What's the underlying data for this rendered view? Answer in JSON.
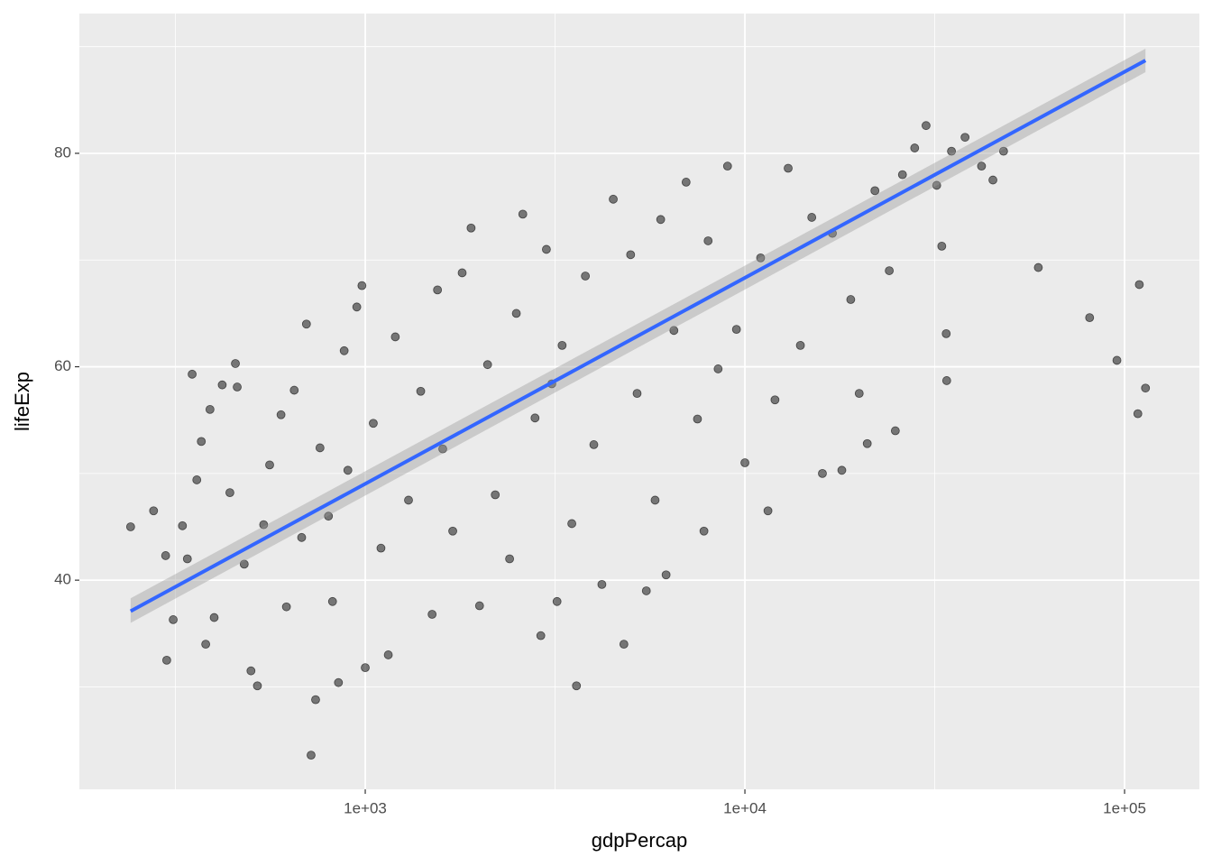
{
  "chart_data": {
    "type": "scatter",
    "x_label": "gdpPercap",
    "y_label": "lifeExp",
    "xscale": "log",
    "grid": true,
    "color": "#000000",
    "xlim": [
      176.6,
      157400
    ],
    "ylim": [
      20.4,
      93.1
    ],
    "xticks": [
      {
        "value": 1000,
        "label": "1e+03"
      },
      {
        "value": 10000,
        "label": "1e+04"
      },
      {
        "value": 100000,
        "label": "1e+05"
      }
    ],
    "minor_xticks": [
      316.2,
      3162,
      31623
    ],
    "yticks": [
      40,
      60,
      80
    ],
    "minor_yticks": [
      30,
      50,
      70,
      90
    ],
    "x": [
      241,
      277,
      298,
      300,
      312,
      330,
      340,
      350,
      360,
      370,
      380,
      390,
      400,
      420,
      440,
      455,
      460,
      480,
      500,
      520,
      540,
      560,
      600,
      620,
      650,
      680,
      700,
      720,
      740,
      760,
      800,
      820,
      850,
      880,
      900,
      950,
      980,
      1000,
      1050,
      1100,
      1150,
      1200,
      1300,
      1400,
      1500,
      1550,
      1600,
      1700,
      1800,
      1900,
      2000,
      2100,
      2200,
      2400,
      2500,
      2600,
      2800,
      2900,
      3000,
      3100,
      3200,
      3300,
      3500,
      3600,
      3800,
      4000,
      4200,
      4500,
      4800,
      5000,
      5200,
      5500,
      5800,
      6000,
      6200,
      6500,
      7000,
      7500,
      7800,
      8000,
      8500,
      9000,
      9500,
      10000,
      11000,
      11500,
      12000,
      13000,
      14000,
      15000,
      16000,
      17000,
      18000,
      19000,
      20000,
      21000,
      22000,
      24000,
      24900,
      26000,
      28000,
      30000,
      32000,
      33000,
      33900,
      34000,
      35000,
      38000,
      42000,
      45000,
      48000,
      59265,
      80895,
      95458,
      108382,
      109348,
      113523
    ],
    "values": [
      45,
      46.5,
      42.3,
      32.5,
      36.3,
      45.1,
      42,
      59.3,
      49.4,
      53,
      34,
      56,
      36.5,
      58.3,
      48.2,
      60.3,
      58.1,
      41.5,
      31.5,
      30.1,
      45.2,
      50.8,
      55.5,
      37.5,
      57.8,
      44,
      64,
      23.6,
      28.8,
      52.4,
      46,
      38,
      30.4,
      61.5,
      50.3,
      65.6,
      67.6,
      31.8,
      54.7,
      43,
      33,
      62.8,
      47.5,
      57.7,
      36.8,
      67.2,
      52.3,
      44.6,
      68.8,
      73,
      37.6,
      60.2,
      48,
      42,
      65,
      74.3,
      55.2,
      34.8,
      71,
      58.4,
      38,
      62,
      45.3,
      30.1,
      68.5,
      52.7,
      39.6,
      75.7,
      34,
      70.5,
      57.5,
      39,
      47.5,
      73.8,
      40.5,
      63.4,
      77.3,
      55.1,
      44.6,
      71.8,
      59.8,
      78.8,
      63.5,
      51,
      70.2,
      46.5,
      56.9,
      78.6,
      62,
      74,
      50,
      72.5,
      50.3,
      66.3,
      57.5,
      52.8,
      76.5,
      69,
      54,
      78,
      80.5,
      82.6,
      77,
      71.3,
      63.1,
      58.7,
      80.2,
      81.5,
      78.8,
      77.5,
      80.2,
      69.3,
      64.6,
      60.6,
      55.6,
      67.7,
      58
    ],
    "fit": {
      "color": "#3366ff",
      "x": [
        241,
        113500
      ],
      "values": [
        37.1,
        88.7
      ],
      "lower": [
        36.0,
        87.6
      ],
      "upper": [
        38.3,
        89.8
      ]
    }
  }
}
